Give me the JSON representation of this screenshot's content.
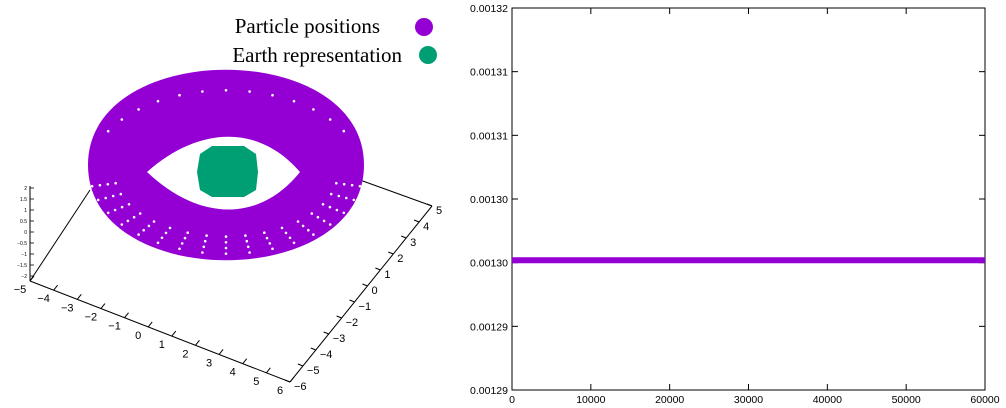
{
  "chart_data": [
    {
      "type": "scatter",
      "projection": "3d",
      "series": [
        {
          "name": "Particle positions",
          "color": "#9400d3",
          "shape": "torus"
        },
        {
          "name": "Earth representation",
          "color": "#009e73",
          "shape": "sphere"
        }
      ],
      "x_ticks": [
        "−5",
        "−4",
        "−3",
        "−2",
        "−1",
        "0",
        "1",
        "2",
        "3",
        "4",
        "5",
        "6"
      ],
      "y_ticks": [
        "−6",
        "−5",
        "−4",
        "−3",
        "−2",
        "−1",
        "0",
        "1",
        "2",
        "3",
        "4",
        "5"
      ],
      "z_ticks": [
        "−2",
        "−1.5",
        "−1",
        "−0.5",
        "0",
        "0.5",
        "1",
        "1.5",
        "2"
      ],
      "xlim": [
        -5,
        6
      ],
      "ylim": [
        -6,
        5
      ],
      "zlim": [
        -2,
        2
      ],
      "legend_position": "top-right"
    },
    {
      "type": "line",
      "series": [
        {
          "color": "#9400d3",
          "x": [
            0,
            60000
          ],
          "y": [
            0.0013,
            0.0013
          ]
        }
      ],
      "x_ticks": [
        "0",
        "10000",
        "20000",
        "30000",
        "40000",
        "50000",
        "60000"
      ],
      "y_ticks": [
        "0.00132",
        "0.00131",
        "0.00131",
        "0.00130",
        "0.00130",
        "0.00129",
        "0.00129"
      ],
      "xlim": [
        0,
        60000
      ],
      "ylim": [
        0.00129,
        0.00132
      ],
      "grid": false,
      "legend_position": "none"
    }
  ]
}
